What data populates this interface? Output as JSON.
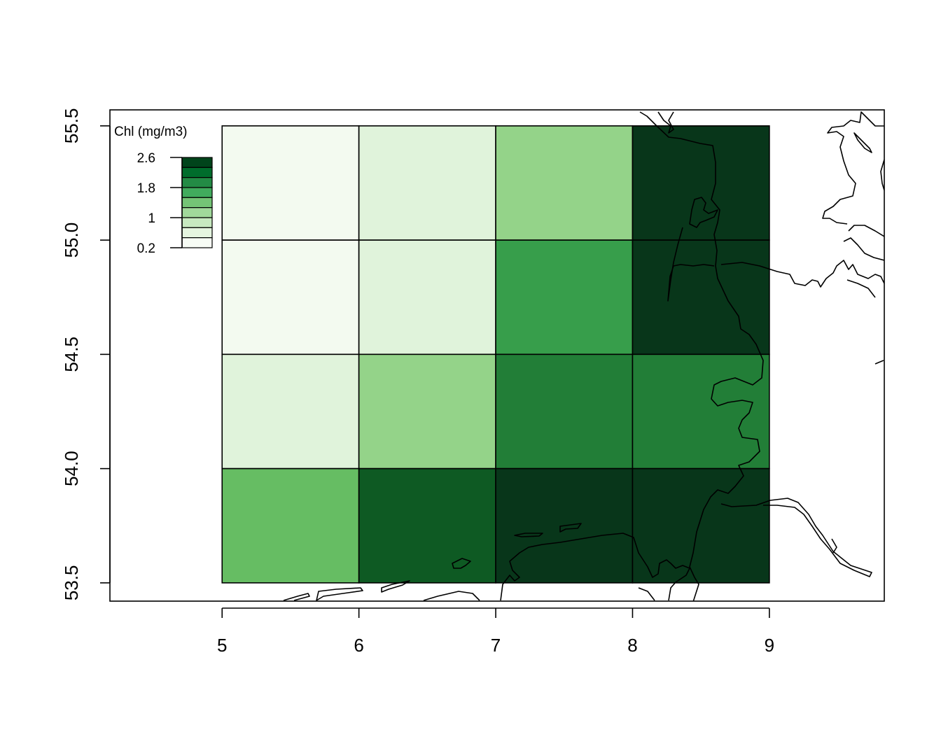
{
  "chart_data": {
    "type": "heatmap",
    "title": "",
    "xlabel": "",
    "ylabel": "",
    "xlim": [
      4.18,
      9.84
    ],
    "ylim": [
      53.42,
      55.57
    ],
    "x_ticks": [
      "5",
      "6",
      "7",
      "8",
      "9"
    ],
    "y_ticks": [
      "53.5",
      "54.0",
      "54.5",
      "55.0",
      "55.5"
    ],
    "grid": false,
    "cells": [
      {
        "x0": 5,
        "x1": 6,
        "y0": 55.0,
        "y1": 55.5,
        "value": 0.3
      },
      {
        "x0": 6,
        "x1": 7,
        "y0": 55.0,
        "y1": 55.5,
        "value": 0.6
      },
      {
        "x0": 7,
        "x1": 8,
        "y0": 55.0,
        "y1": 55.5,
        "value": 1.0
      },
      {
        "x0": 8,
        "x1": 9,
        "y0": 55.0,
        "y1": 55.5,
        "value": 2.5
      },
      {
        "x0": 5,
        "x1": 6,
        "y0": 54.5,
        "y1": 55.0,
        "value": 0.3
      },
      {
        "x0": 6,
        "x1": 7,
        "y0": 54.5,
        "y1": 55.0,
        "value": 0.6
      },
      {
        "x0": 7,
        "x1": 8,
        "y0": 54.5,
        "y1": 55.0,
        "value": 1.6
      },
      {
        "x0": 8,
        "x1": 9,
        "y0": 54.5,
        "y1": 55.0,
        "value": 2.5
      },
      {
        "x0": 5,
        "x1": 6,
        "y0": 54.0,
        "y1": 54.5,
        "value": 0.6
      },
      {
        "x0": 6,
        "x1": 7,
        "y0": 54.0,
        "y1": 54.5,
        "value": 1.0
      },
      {
        "x0": 7,
        "x1": 8,
        "y0": 54.0,
        "y1": 54.5,
        "value": 1.9
      },
      {
        "x0": 8,
        "x1": 9,
        "y0": 54.0,
        "y1": 54.5,
        "value": 1.9
      },
      {
        "x0": 5,
        "x1": 6,
        "y0": 53.5,
        "y1": 54.0,
        "value": 1.3
      },
      {
        "x0": 6,
        "x1": 7,
        "y0": 53.5,
        "y1": 54.0,
        "value": 2.2
      },
      {
        "x0": 7,
        "x1": 8,
        "y0": 53.5,
        "y1": 54.0,
        "value": 2.5
      },
      {
        "x0": 8,
        "x1": 9,
        "y0": 53.5,
        "y1": 54.0,
        "value": 2.5
      }
    ],
    "legend": {
      "title": "Chl (mg/m3)",
      "placement": "top-left",
      "range": [
        0.2,
        2.6
      ],
      "ticks": [
        {
          "label": "2.6",
          "value": 2.6
        },
        {
          "label": "1.8",
          "value": 1.8
        },
        {
          "label": "1",
          "value": 1.0
        },
        {
          "label": "0.2",
          "value": 0.2
        }
      ],
      "colors": [
        "#f7fcf5",
        "#e5f5e0",
        "#c7e9c0",
        "#a1d99b",
        "#74c476",
        "#41ab5d",
        "#238b45",
        "#006d2c",
        "#00441b"
      ]
    },
    "color_scale": {
      "breaks": [
        0.2,
        0.5,
        0.8,
        1.1,
        1.4,
        1.7,
        2.0,
        2.3,
        2.6
      ],
      "colors": [
        "#f3faf0",
        "#e0f3db",
        "#94d389",
        "#66bd63",
        "#379e4b",
        "#227e37",
        "#0e5a23",
        "#08361a"
      ]
    }
  }
}
